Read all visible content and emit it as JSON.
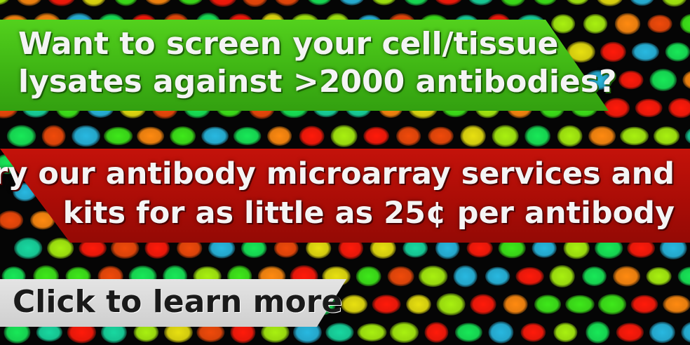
{
  "banner": {
    "question_lines": [
      "Want to screen your cell/tissue",
      "lysates against >2000 antibodies?"
    ],
    "offer_lines": [
      "Try our antibody microarray services and",
      "kits for as little as 25¢ per antibody"
    ],
    "cta_label": "Click to learn more"
  },
  "colors": {
    "background": "#050505",
    "green_ribbon": "#3fb514",
    "red_ribbon": "#b00e07",
    "gray_ribbon": "#d8d8d8",
    "headline_text": "#f4f4f4",
    "cta_text": "#1a1a1a",
    "spot_palette": [
      "#ff1a0a",
      "#f04a0a",
      "#ff8a10",
      "#e8e010",
      "#a8f010",
      "#3ee81a",
      "#18e858",
      "#18d8a0",
      "#28b8e0"
    ]
  }
}
